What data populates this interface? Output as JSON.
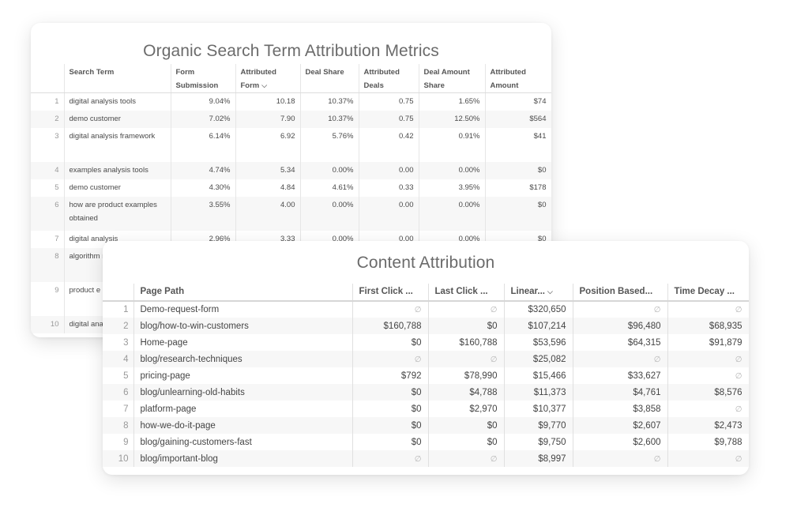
{
  "search_card": {
    "title": "Organic Search Term Attribution Metrics",
    "columns": [
      {
        "key": "term",
        "label": "Search Term"
      },
      {
        "key": "form_sub",
        "label": "Form Submission"
      },
      {
        "key": "attr_form",
        "label": "Attributed Form",
        "sorted": "desc"
      },
      {
        "key": "deal_share",
        "label": "Deal Share"
      },
      {
        "key": "attr_deals",
        "label": "Attributed Deals"
      },
      {
        "key": "deal_amt_share",
        "label": "Deal Amount Share"
      },
      {
        "key": "attr_amt",
        "label": "Attributed Amount"
      }
    ],
    "rows": [
      {
        "idx": "1",
        "term": "digital analysis tools",
        "form_sub": "9.04%",
        "attr_form": "10.18",
        "deal_share": "10.37%",
        "attr_deals": "0.75",
        "deal_amt_share": "1.65%",
        "attr_amt": "$74"
      },
      {
        "idx": "2",
        "term": "demo customer",
        "form_sub": "7.02%",
        "attr_form": "7.90",
        "deal_share": "10.37%",
        "attr_deals": "0.75",
        "deal_amt_share": "12.50%",
        "attr_amt": "$564"
      },
      {
        "idx": "3",
        "term": "digital analysis framework",
        "form_sub": "6.14%",
        "attr_form": "6.92",
        "deal_share": "5.76%",
        "attr_deals": "0.42",
        "deal_amt_share": "0.91%",
        "attr_amt": "$41"
      },
      {
        "idx": "4",
        "term": "examples analysis tools",
        "form_sub": "4.74%",
        "attr_form": "5.34",
        "deal_share": "0.00%",
        "attr_deals": "0.00",
        "deal_amt_share": "0.00%",
        "attr_amt": "$0"
      },
      {
        "idx": "5",
        "term": "demo customer",
        "form_sub": "4.30%",
        "attr_form": "4.84",
        "deal_share": "4.61%",
        "attr_deals": "0.33",
        "deal_amt_share": "3.95%",
        "attr_amt": "$178"
      },
      {
        "idx": "6",
        "term": "how are product examples obtained",
        "form_sub": "3.55%",
        "attr_form": "4.00",
        "deal_share": "0.00%",
        "attr_deals": "0.00",
        "deal_amt_share": "0.00%",
        "attr_amt": "$0"
      },
      {
        "idx": "7",
        "term": "digital analysis",
        "form_sub": "2.96%",
        "attr_form": "3.33",
        "deal_share": "0.00%",
        "attr_deals": "0.00",
        "deal_amt_share": "0.00%",
        "attr_amt": "$0"
      },
      {
        "idx": "8",
        "term": "algorithm model",
        "form_sub": "",
        "attr_form": "",
        "deal_share": "",
        "attr_deals": "",
        "deal_amt_share": "",
        "attr_amt": ""
      },
      {
        "idx": "9",
        "term": "product e industry",
        "form_sub": "",
        "attr_form": "",
        "deal_share": "",
        "attr_deals": "",
        "deal_amt_share": "",
        "attr_amt": ""
      },
      {
        "idx": "10",
        "term": "digital ana",
        "form_sub": "",
        "attr_form": "",
        "deal_share": "",
        "attr_deals": "",
        "deal_amt_share": "",
        "attr_amt": ""
      }
    ]
  },
  "content_card": {
    "title": "Content Attribution",
    "columns": [
      {
        "key": "path",
        "label": "Page Path"
      },
      {
        "key": "first",
        "label": "First Click ..."
      },
      {
        "key": "last",
        "label": "Last Click ..."
      },
      {
        "key": "linear",
        "label": "Linear...",
        "sorted": "desc"
      },
      {
        "key": "position",
        "label": "Position Based..."
      },
      {
        "key": "decay",
        "label": "Time Decay ..."
      }
    ],
    "null_symbol": "∅",
    "rows": [
      {
        "idx": "1",
        "path": "Demo-request-form",
        "first": null,
        "last": null,
        "linear": "$320,650",
        "position": null,
        "decay": null
      },
      {
        "idx": "2",
        "path": "blog/how-to-win-customers",
        "first": "$160,788",
        "last": "$0",
        "linear": "$107,214",
        "position": "$96,480",
        "decay": "$68,935"
      },
      {
        "idx": "3",
        "path": "Home-page",
        "first": "$0",
        "last": "$160,788",
        "linear": "$53,596",
        "position": "$64,315",
        "decay": "$91,879"
      },
      {
        "idx": "4",
        "path": "blog/research-techniques",
        "first": null,
        "last": null,
        "linear": "$25,082",
        "position": null,
        "decay": null
      },
      {
        "idx": "5",
        "path": "pricing-page",
        "first": "$792",
        "last": "$78,990",
        "linear": "$15,466",
        "position": "$33,627",
        "decay": null
      },
      {
        "idx": "6",
        "path": "blog/unlearning-old-habits",
        "first": "$0",
        "last": "$4,788",
        "linear": "$11,373",
        "position": "$4,761",
        "decay": "$8,576"
      },
      {
        "idx": "7",
        "path": "platform-page",
        "first": "$0",
        "last": "$2,970",
        "linear": "$10,377",
        "position": "$3,858",
        "decay": null
      },
      {
        "idx": "8",
        "path": "how-we-do-it-page",
        "first": "$0",
        "last": "$0",
        "linear": "$9,770",
        "position": "$2,607",
        "decay": "$2,473"
      },
      {
        "idx": "9",
        "path": "blog/gaining-customers-fast",
        "first": "$0",
        "last": "$0",
        "linear": "$9,750",
        "position": "$2,600",
        "decay": "$9,788"
      },
      {
        "idx": "10",
        "path": "blog/important-blog",
        "first": null,
        "last": null,
        "linear": "$8,997",
        "position": null,
        "decay": null
      }
    ]
  }
}
